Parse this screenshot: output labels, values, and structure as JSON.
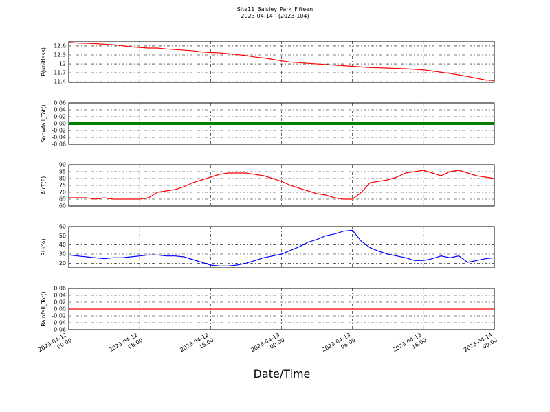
{
  "title": "Site11_Baisley_Park_Fifteen",
  "subtitle": "2023-04-14 - (2023-104)",
  "xlabel": "Date/Time",
  "x": [
    "2023-04-12 00:00",
    "2023-04-12 01:00",
    "2023-04-12 02:00",
    "2023-04-12 03:00",
    "2023-04-12 04:00",
    "2023-04-12 05:00",
    "2023-04-12 06:00",
    "2023-04-12 07:00",
    "2023-04-12 08:00",
    "2023-04-12 09:00",
    "2023-04-12 10:00",
    "2023-04-12 11:00",
    "2023-04-12 12:00",
    "2023-04-12 13:00",
    "2023-04-12 14:00",
    "2023-04-12 15:00",
    "2023-04-12 16:00",
    "2023-04-12 17:00",
    "2023-04-12 18:00",
    "2023-04-12 19:00",
    "2023-04-12 20:00",
    "2023-04-12 21:00",
    "2023-04-12 22:00",
    "2023-04-12 23:00",
    "2023-04-13 00:00",
    "2023-04-13 01:00",
    "2023-04-13 02:00",
    "2023-04-13 03:00",
    "2023-04-13 04:00",
    "2023-04-13 05:00",
    "2023-04-13 06:00",
    "2023-04-13 07:00",
    "2023-04-13 08:00",
    "2023-04-13 09:00",
    "2023-04-13 10:00",
    "2023-04-13 11:00",
    "2023-04-13 12:00",
    "2023-04-13 13:00",
    "2023-04-13 14:00",
    "2023-04-13 15:00",
    "2023-04-13 16:00",
    "2023-04-13 17:00",
    "2023-04-13 18:00",
    "2023-04-13 19:00",
    "2023-04-13 20:00",
    "2023-04-13 21:00",
    "2023-04-13 22:00",
    "2023-04-13 23:00",
    "2023-04-14 00:00"
  ],
  "xticks": [
    "2023-04-12 00:00",
    "2023-04-12 08:00",
    "2023-04-12 16:00",
    "2023-04-13 00:00",
    "2023-04-13 08:00",
    "2023-04-13 16:00",
    "2023-04-14 00:00"
  ],
  "chart_data": [
    {
      "type": "line",
      "ylabel": "P(unitless)",
      "ylim": [
        11.38,
        12.76
      ],
      "yticks": [
        11.4,
        11.7,
        12.0,
        12.3,
        12.6
      ],
      "grid": true,
      "series": [
        {
          "color": "#ff0000",
          "values": [
            12.72,
            12.7,
            12.69,
            12.68,
            12.66,
            12.64,
            12.61,
            12.57,
            12.55,
            12.53,
            12.53,
            12.5,
            12.48,
            12.46,
            12.44,
            12.4,
            12.38,
            12.37,
            12.34,
            12.31,
            12.28,
            12.23,
            12.2,
            12.15,
            12.1,
            12.06,
            12.04,
            12.02,
            12.0,
            11.98,
            11.96,
            11.94,
            11.92,
            11.9,
            11.88,
            11.87,
            11.86,
            11.85,
            11.84,
            11.82,
            11.8,
            11.76,
            11.72,
            11.68,
            11.63,
            11.58,
            11.52,
            11.46,
            11.44
          ]
        }
      ]
    },
    {
      "type": "line",
      "ylabel": "Snowfall_Tot()",
      "ylim": [
        -0.06,
        0.06
      ],
      "yticks": [
        -0.06,
        -0.04,
        -0.02,
        {
          "value": 0,
          "label": "0.00"
        },
        0.02,
        0.04,
        0.06
      ],
      "grid": true,
      "series": [
        {
          "color": "#008000",
          "width": 4,
          "values": [
            0,
            0,
            0,
            0,
            0,
            0,
            0,
            0,
            0,
            0,
            0,
            0,
            0,
            0,
            0,
            0,
            0,
            0,
            0,
            0,
            0,
            0,
            0,
            0,
            0,
            0,
            0,
            0,
            0,
            0,
            0,
            0,
            0,
            0,
            0,
            0,
            0,
            0,
            0,
            0,
            0,
            0,
            0,
            0,
            0,
            0,
            0,
            0,
            0
          ]
        }
      ]
    },
    {
      "type": "line",
      "ylabel": "AirT(F)",
      "ylim": [
        60,
        90
      ],
      "yticks": [
        60,
        65,
        70,
        75,
        80,
        85,
        90
      ],
      "grid": true,
      "series": [
        {
          "color": "#ff0000",
          "values": [
            66,
            66,
            66,
            65,
            66,
            65,
            65,
            65,
            65,
            66,
            70,
            71,
            72,
            74,
            77,
            79,
            81,
            83,
            84,
            84,
            84,
            83,
            82,
            80,
            78,
            75,
            73,
            71,
            69,
            68,
            66,
            65,
            65,
            70,
            77,
            78,
            79,
            81,
            84,
            85,
            86,
            84,
            82,
            85,
            86,
            84,
            82,
            81,
            80
          ]
        }
      ]
    },
    {
      "type": "line",
      "ylabel": "RH(%)",
      "ylim": [
        15,
        60
      ],
      "yticks": [
        20,
        30,
        40,
        50,
        60
      ],
      "grid": true,
      "series": [
        {
          "color": "#0000ff",
          "values": [
            29,
            28,
            27,
            26,
            25,
            26,
            26,
            27,
            28,
            29,
            29,
            28,
            28,
            27,
            24,
            21,
            18,
            17,
            17,
            18,
            20,
            23,
            26,
            28,
            30,
            34,
            38,
            43,
            46,
            50,
            52,
            55,
            56,
            44,
            37,
            33,
            30,
            28,
            26,
            23,
            23,
            25,
            28,
            26,
            28,
            21,
            23,
            25,
            26
          ]
        }
      ]
    },
    {
      "type": "line",
      "ylabel": "Rainfall_Tot()",
      "ylim": [
        -0.06,
        0.06
      ],
      "yticks": [
        -0.06,
        -0.04,
        -0.02,
        {
          "value": 0,
          "label": "0.00"
        },
        0.02,
        0.04,
        0.06
      ],
      "grid": true,
      "series": [
        {
          "color": "#ff0000",
          "values": [
            0,
            0,
            0,
            0,
            0,
            0,
            0,
            0,
            0,
            0,
            0,
            0,
            0,
            0,
            0,
            0,
            0,
            0,
            0,
            0,
            0,
            0,
            0,
            0,
            0,
            0,
            0,
            0,
            0,
            0,
            0,
            0,
            0,
            0,
            0,
            0,
            0,
            0,
            0,
            0,
            0,
            0,
            0,
            0,
            0,
            0,
            0,
            0,
            0
          ]
        }
      ]
    }
  ]
}
